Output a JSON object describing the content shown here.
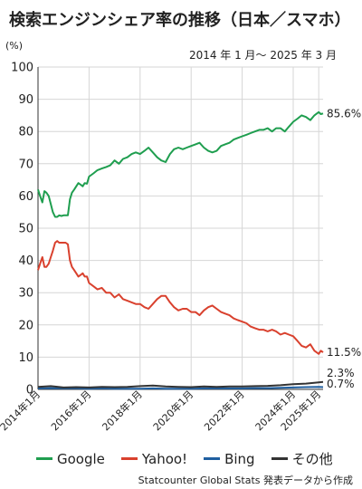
{
  "chart_data": {
    "type": "line",
    "title": "検索エンジンシェア率の推移（日本／スマホ）",
    "subtitle": "2014 年 1 月～ 2025 年 3 月",
    "unit": "(%)",
    "source": "Statcounter Global Stats 発表データから作成",
    "ylim": [
      0,
      100
    ],
    "yticks": [
      0,
      10,
      20,
      30,
      40,
      50,
      60,
      70,
      80,
      90,
      100
    ],
    "xlim": [
      2014.0,
      2025.17
    ],
    "x_tick_labels": [
      "2014年1月",
      "2016年1月",
      "2018年1月",
      "2020年1月",
      "2022年1月",
      "2024年1月",
      "2025年1月"
    ],
    "x_tick_values": [
      2014.0,
      2016.0,
      2018.0,
      2020.0,
      2022.0,
      2024.0,
      2025.0
    ],
    "grid": true,
    "legend": "bottom",
    "series": [
      {
        "name": "Google",
        "color": "#1f9e4f",
        "end_label": "85.6%",
        "x": [
          2014.0,
          2014.08,
          2014.17,
          2014.25,
          2014.33,
          2014.42,
          2014.5,
          2014.58,
          2014.67,
          2014.75,
          2014.83,
          2014.92,
          2015.0,
          2015.08,
          2015.17,
          2015.25,
          2015.33,
          2015.42,
          2015.5,
          2015.58,
          2015.67,
          2015.75,
          2015.83,
          2015.92,
          2016.0,
          2016.17,
          2016.33,
          2016.5,
          2016.67,
          2016.83,
          2017.0,
          2017.17,
          2017.33,
          2017.5,
          2017.67,
          2017.83,
          2018.0,
          2018.17,
          2018.33,
          2018.5,
          2018.67,
          2018.83,
          2019.0,
          2019.17,
          2019.33,
          2019.5,
          2019.67,
          2019.83,
          2020.0,
          2020.17,
          2020.33,
          2020.5,
          2020.67,
          2020.83,
          2021.0,
          2021.17,
          2021.33,
          2021.5,
          2021.67,
          2021.83,
          2022.0,
          2022.17,
          2022.33,
          2022.5,
          2022.67,
          2022.83,
          2023.0,
          2023.17,
          2023.33,
          2023.5,
          2023.67,
          2023.83,
          2024.0,
          2024.17,
          2024.33,
          2024.5,
          2024.67,
          2024.83,
          2025.0,
          2025.08,
          2025.17
        ],
        "values": [
          62,
          60,
          58,
          61.5,
          61,
          60,
          57.5,
          55,
          53.5,
          53.5,
          54,
          53.8,
          54,
          54,
          54,
          59,
          61,
          62,
          63,
          64,
          63.5,
          63,
          64,
          63.8,
          66,
          67,
          68,
          68.5,
          69,
          69.5,
          71,
          70,
          71.5,
          72,
          73,
          73.5,
          73,
          74,
          75,
          73.5,
          72,
          71,
          70.5,
          73,
          74.5,
          75,
          74.5,
          75,
          75.5,
          76,
          76.5,
          75,
          74,
          73.5,
          74,
          75.5,
          76,
          76.5,
          77.5,
          78,
          78.5,
          79,
          79.5,
          80,
          80.5,
          80.5,
          81,
          80,
          81,
          81,
          80,
          81.5,
          83,
          84,
          85,
          84.5,
          83.5,
          85,
          86,
          85.4,
          85.6
        ]
      },
      {
        "name": "Yahoo!",
        "color": "#d9412e",
        "end_label": "11.5%",
        "x": [
          2014.0,
          2014.08,
          2014.17,
          2014.25,
          2014.33,
          2014.42,
          2014.5,
          2014.58,
          2014.67,
          2014.75,
          2014.83,
          2014.92,
          2015.0,
          2015.08,
          2015.17,
          2015.25,
          2015.33,
          2015.42,
          2015.5,
          2015.58,
          2015.67,
          2015.75,
          2015.83,
          2015.92,
          2016.0,
          2016.17,
          2016.33,
          2016.5,
          2016.67,
          2016.83,
          2017.0,
          2017.17,
          2017.33,
          2017.5,
          2017.67,
          2017.83,
          2018.0,
          2018.17,
          2018.33,
          2018.5,
          2018.67,
          2018.83,
          2019.0,
          2019.17,
          2019.33,
          2019.5,
          2019.67,
          2019.83,
          2020.0,
          2020.17,
          2020.33,
          2020.5,
          2020.67,
          2020.83,
          2021.0,
          2021.17,
          2021.33,
          2021.5,
          2021.67,
          2021.83,
          2022.0,
          2022.17,
          2022.33,
          2022.5,
          2022.67,
          2022.83,
          2023.0,
          2023.17,
          2023.33,
          2023.5,
          2023.67,
          2023.83,
          2024.0,
          2024.17,
          2024.33,
          2024.5,
          2024.67,
          2024.83,
          2025.0,
          2025.08,
          2025.17
        ],
        "values": [
          37,
          39,
          41,
          38,
          38,
          39,
          41,
          43,
          45.5,
          46,
          45.5,
          45.5,
          45.5,
          45.5,
          45,
          40,
          38,
          37,
          36,
          35,
          35.5,
          36,
          35,
          35,
          33,
          32,
          31,
          31.5,
          30,
          30,
          28.5,
          29.5,
          28,
          27.5,
          27,
          26.5,
          26.5,
          25.5,
          25,
          26.5,
          28,
          29,
          29,
          27,
          25.5,
          24.5,
          25,
          25,
          24,
          24,
          23,
          24.5,
          25.5,
          26,
          25,
          24,
          23.5,
          23,
          22,
          21.5,
          21,
          20.5,
          19.5,
          19,
          18.5,
          18.5,
          18,
          18.5,
          18,
          17,
          17.5,
          17,
          16.5,
          15,
          13.5,
          13,
          14,
          12,
          11,
          12,
          11.5
        ]
      },
      {
        "name": "Bing",
        "color": "#1f5fa0",
        "end_label": "0.7%",
        "x": [
          2014.0,
          2014.5,
          2015.0,
          2015.5,
          2016.0,
          2016.5,
          2017.0,
          2017.5,
          2018.0,
          2018.5,
          2019.0,
          2019.5,
          2020.0,
          2020.5,
          2021.0,
          2021.5,
          2022.0,
          2022.5,
          2023.0,
          2023.5,
          2024.0,
          2024.5,
          2025.0,
          2025.17
        ],
        "values": [
          0.3,
          0.4,
          0.3,
          0.3,
          0.2,
          0.3,
          0.2,
          0.2,
          0.2,
          0.3,
          0.2,
          0.2,
          0.2,
          0.3,
          0.3,
          0.3,
          0.3,
          0.4,
          0.4,
          0.5,
          0.6,
          0.7,
          0.8,
          0.7
        ]
      },
      {
        "name": "その他",
        "color": "#333333",
        "end_label": "2.3%",
        "x": [
          2014.0,
          2014.5,
          2015.0,
          2015.5,
          2016.0,
          2016.5,
          2017.0,
          2017.5,
          2018.0,
          2018.5,
          2019.0,
          2019.5,
          2020.0,
          2020.5,
          2021.0,
          2021.5,
          2022.0,
          2022.5,
          2023.0,
          2023.5,
          2024.0,
          2024.5,
          2025.0,
          2025.17
        ],
        "values": [
          0.8,
          1.0,
          0.6,
          0.7,
          0.6,
          0.8,
          0.7,
          0.8,
          1.0,
          1.2,
          0.9,
          0.8,
          0.7,
          0.9,
          0.8,
          0.9,
          0.9,
          1.0,
          1.1,
          1.3,
          1.6,
          1.8,
          2.2,
          2.3
        ]
      }
    ]
  }
}
